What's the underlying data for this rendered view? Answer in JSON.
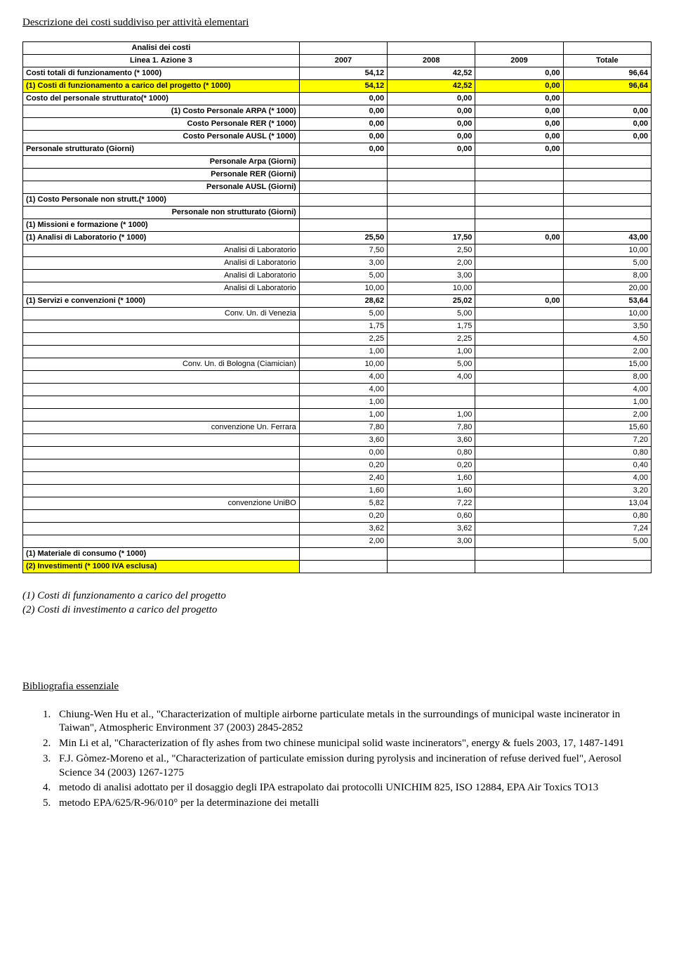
{
  "section_title": "Descrizione dei costi suddiviso per attività elementari",
  "table": {
    "header1_left": "Analisi dei costi",
    "header2_left": "Linea 1. Azione 3",
    "header_cols": [
      "2007",
      "2008",
      "2009",
      "Totale"
    ],
    "rows": [
      {
        "label": "Costi totali di funzionamento (* 1000)",
        "vals": [
          "54,12",
          "42,52",
          "0,00",
          "96,64"
        ],
        "bold": true,
        "align": "left",
        "bg_label": null,
        "bg_vals": null
      },
      {
        "label": "(1) Costi di funzionamento a carico del progetto (* 1000)",
        "vals": [
          "54,12",
          "42,52",
          "0,00",
          "96,64"
        ],
        "bold": true,
        "align": "left",
        "bg_label": "#ffff00",
        "bg_vals": "#ffff00"
      },
      {
        "label": "Costo del personale strutturato(* 1000)",
        "vals": [
          "0,00",
          "0,00",
          "0,00",
          ""
        ],
        "bold": true,
        "align": "left"
      },
      {
        "label": "(1) Costo Personale ARPA (* 1000)",
        "vals": [
          "0,00",
          "0,00",
          "0,00",
          "0,00"
        ],
        "bold": true,
        "align": "right"
      },
      {
        "label": "Costo Personale RER (* 1000)",
        "vals": [
          "0,00",
          "0,00",
          "0,00",
          "0,00"
        ],
        "bold": true,
        "align": "right"
      },
      {
        "label": "Costo Personale AUSL (* 1000)",
        "vals": [
          "0,00",
          "0,00",
          "0,00",
          "0,00"
        ],
        "bold": true,
        "align": "right"
      },
      {
        "label": "Personale strutturato (Giorni)",
        "vals": [
          "0,00",
          "0,00",
          "0,00",
          ""
        ],
        "bold": true,
        "align": "left"
      },
      {
        "label": "Personale Arpa (Giorni)",
        "vals": [
          "",
          "",
          "",
          ""
        ],
        "bold": true,
        "align": "right"
      },
      {
        "label": "Personale RER (Giorni)",
        "vals": [
          "",
          "",
          "",
          ""
        ],
        "bold": true,
        "align": "right"
      },
      {
        "label": "Personale AUSL (Giorni)",
        "vals": [
          "",
          "",
          "",
          ""
        ],
        "bold": true,
        "align": "right"
      },
      {
        "label": "(1) Costo Personale non strutt.(* 1000)",
        "vals": [
          "",
          "",
          "",
          ""
        ],
        "bold": true,
        "align": "left"
      },
      {
        "label": "Personale non strutturato (Giorni)",
        "vals": [
          "",
          "",
          "",
          ""
        ],
        "bold": true,
        "align": "right"
      },
      {
        "label": "(1) Missioni e formazione (* 1000)",
        "vals": [
          "",
          "",
          "",
          ""
        ],
        "bold": true,
        "align": "left"
      },
      {
        "label": "(1) Analisi di Laboratorio (* 1000)",
        "vals": [
          "25,50",
          "17,50",
          "0,00",
          "43,00"
        ],
        "bold": true,
        "align": "left"
      },
      {
        "label": "Analisi di Laboratorio",
        "vals": [
          "7,50",
          "2,50",
          "",
          "10,00"
        ],
        "bold": false,
        "align": "right"
      },
      {
        "label": "Analisi di Laboratorio",
        "vals": [
          "3,00",
          "2,00",
          "",
          "5,00"
        ],
        "bold": false,
        "align": "right"
      },
      {
        "label": "Analisi di Laboratorio",
        "vals": [
          "5,00",
          "3,00",
          "",
          "8,00"
        ],
        "bold": false,
        "align": "right"
      },
      {
        "label": "Analisi di Laboratorio",
        "vals": [
          "10,00",
          "10,00",
          "",
          "20,00"
        ],
        "bold": false,
        "align": "right"
      },
      {
        "label": "(1) Servizi e convenzioni (* 1000)",
        "vals": [
          "28,62",
          "25,02",
          "0,00",
          "53,64"
        ],
        "bold": true,
        "align": "left"
      },
      {
        "label": "Conv. Un. di Venezia",
        "vals": [
          "5,00",
          "5,00",
          "",
          "10,00"
        ],
        "bold": false,
        "align": "right"
      },
      {
        "label": "",
        "vals": [
          "1,75",
          "1,75",
          "",
          "3,50"
        ],
        "bold": false,
        "align": "right"
      },
      {
        "label": "",
        "vals": [
          "2,25",
          "2,25",
          "",
          "4,50"
        ],
        "bold": false,
        "align": "right"
      },
      {
        "label": "",
        "vals": [
          "1,00",
          "1,00",
          "",
          "2,00"
        ],
        "bold": false,
        "align": "right"
      },
      {
        "label": "Conv. Un. di Bologna (Ciamician)",
        "vals": [
          "10,00",
          "5,00",
          "",
          "15,00"
        ],
        "bold": false,
        "align": "right"
      },
      {
        "label": "",
        "vals": [
          "4,00",
          "4,00",
          "",
          "8,00"
        ],
        "bold": false,
        "align": "right"
      },
      {
        "label": "",
        "vals": [
          "4,00",
          "",
          "",
          "4,00"
        ],
        "bold": false,
        "align": "right"
      },
      {
        "label": "",
        "vals": [
          "1,00",
          "",
          "",
          "1,00"
        ],
        "bold": false,
        "align": "right"
      },
      {
        "label": "",
        "vals": [
          "1,00",
          "1,00",
          "",
          "2,00"
        ],
        "bold": false,
        "align": "right"
      },
      {
        "label": "convenzione Un. Ferrara",
        "vals": [
          "7,80",
          "7,80",
          "",
          "15,60"
        ],
        "bold": false,
        "align": "right"
      },
      {
        "label": "",
        "vals": [
          "3,60",
          "3,60",
          "",
          "7,20"
        ],
        "bold": false,
        "align": "right"
      },
      {
        "label": "",
        "vals": [
          "0,00",
          "0,80",
          "",
          "0,80"
        ],
        "bold": false,
        "align": "right"
      },
      {
        "label": "",
        "vals": [
          "0,20",
          "0,20",
          "",
          "0,40"
        ],
        "bold": false,
        "align": "right"
      },
      {
        "label": "",
        "vals": [
          "2,40",
          "1,60",
          "",
          "4,00"
        ],
        "bold": false,
        "align": "right"
      },
      {
        "label": "",
        "vals": [
          "1,60",
          "1,60",
          "",
          "3,20"
        ],
        "bold": false,
        "align": "right"
      },
      {
        "label": "convenzione UniBO",
        "vals": [
          "5,82",
          "7,22",
          "",
          "13,04"
        ],
        "bold": false,
        "align": "right"
      },
      {
        "label": "",
        "vals": [
          "0,20",
          "0,60",
          "",
          "0,80"
        ],
        "bold": false,
        "align": "right"
      },
      {
        "label": "",
        "vals": [
          "3,62",
          "3,62",
          "",
          "7,24"
        ],
        "bold": false,
        "align": "right"
      },
      {
        "label": "",
        "vals": [
          "2,00",
          "3,00",
          "",
          "5,00"
        ],
        "bold": false,
        "align": "right"
      },
      {
        "label": "(1) Materiale di consumo (* 1000)",
        "vals": [
          "",
          "",
          "",
          ""
        ],
        "bold": true,
        "align": "left"
      },
      {
        "label": "(2) Investimenti (* 1000 IVA esclusa)",
        "vals": [
          "",
          "",
          "",
          ""
        ],
        "bold": true,
        "align": "left",
        "bg_label": "#ffff00"
      }
    ]
  },
  "notes": [
    "(1) Costi di funzionamento a carico del progetto",
    "(2) Costi di investimento a carico del progetto"
  ],
  "biblio_title": "Bibliografia essenziale",
  "biblio": [
    "Chiung-Wen Hu et al., \"Characterization of multiple airborne particulate metals in the surroundings of municipal waste incinerator in Taiwan\", Atmospheric Environment 37 (2003) 2845-2852",
    "Min Li et al, \"Characterization of fly ashes from two chinese municipal solid waste incinerators\", energy & fuels 2003, 17, 1487-1491",
    "F.J. Gòmez-Moreno et al., \"Characterization of particulate emission during pyrolysis and incineration of refuse derived fuel\", Aerosol Science 34 (2003) 1267-1275",
    "metodo di analisi adottato per il dosaggio degli IPA estrapolato dai protocolli UNICHIM 825, ISO 12884, EPA Air Toxics TO13",
    "metodo EPA/625/R-96/010° per la determinazione dei metalli"
  ],
  "colors": {
    "highlight": "#ffff00",
    "border": "#000000",
    "text": "#000000",
    "background": "#ffffff"
  }
}
